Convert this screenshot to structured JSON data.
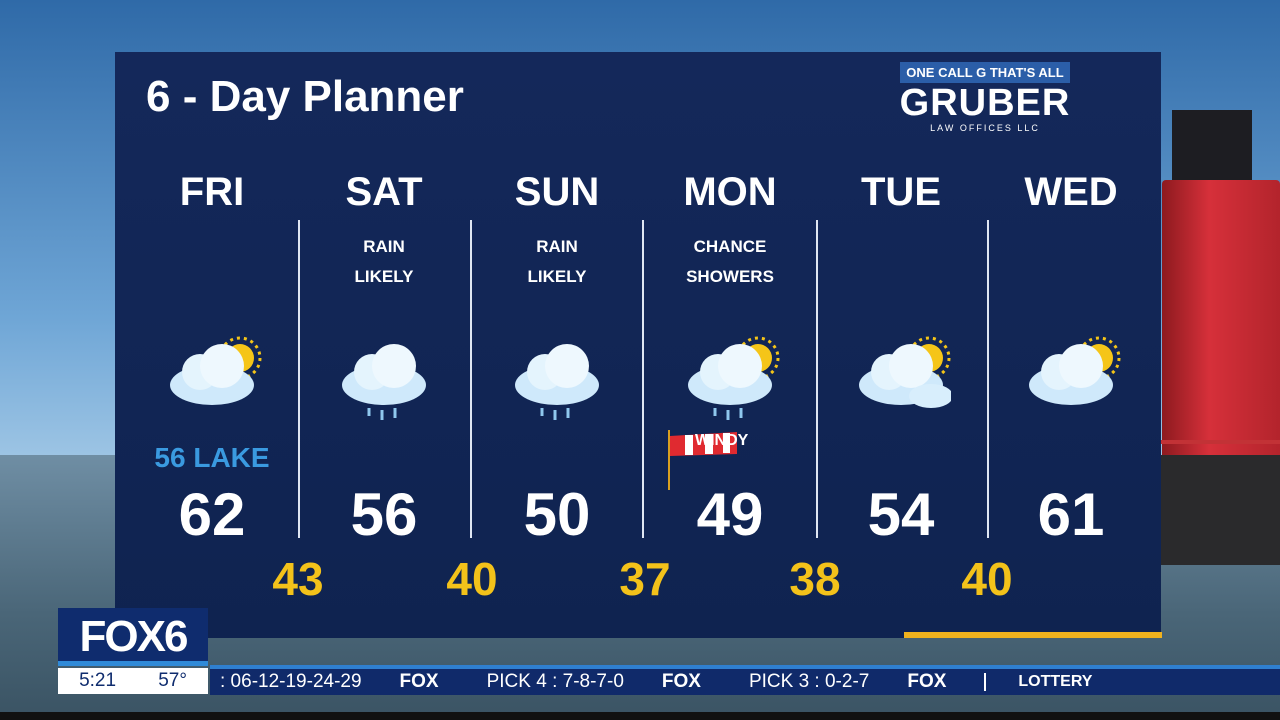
{
  "title": "6 - Day Planner",
  "sponsor": {
    "tagline": "ONE CALL G THAT'S ALL",
    "name": "GRUBER",
    "sub": "LAW OFFICES LLC"
  },
  "days": [
    {
      "day": "FRI",
      "cond1": "",
      "cond2": "",
      "icon": "partly-sunny-icon",
      "high": "62",
      "note": "56 LAKE"
    },
    {
      "day": "SAT",
      "cond1": "RAIN",
      "cond2": "LIKELY",
      "icon": "rain-cloud-icon",
      "high": "56"
    },
    {
      "day": "SUN",
      "cond1": "RAIN",
      "cond2": "LIKELY",
      "icon": "rain-cloud-icon",
      "high": "50"
    },
    {
      "day": "MON",
      "cond1": "CHANCE",
      "cond2": "SHOWERS",
      "icon": "sun-showers-icon",
      "high": "49",
      "note": "WINDY"
    },
    {
      "day": "TUE",
      "cond1": "",
      "cond2": "",
      "icon": "mostly-cloudy-icon",
      "high": "54"
    },
    {
      "day": "WED",
      "cond1": "",
      "cond2": "",
      "icon": "partly-sunny-icon",
      "high": "61"
    }
  ],
  "lows": [
    "43",
    "40",
    "37",
    "38",
    "40"
  ],
  "station": {
    "logo": "FOX6",
    "time": "5:21",
    "temp": "57°"
  },
  "ticker": {
    "items": [
      ": 06-12-19-24-29",
      "FOX",
      "PICK 4 : 7-8-7-0",
      "FOX",
      "PICK 3 : 0-2-7",
      "FOX"
    ],
    "section": "LOTTERY"
  },
  "colors": {
    "panel": "#14285a",
    "low": "#f3c21a",
    "lake": "#3a9ae0",
    "accent": "#f0b21e"
  }
}
